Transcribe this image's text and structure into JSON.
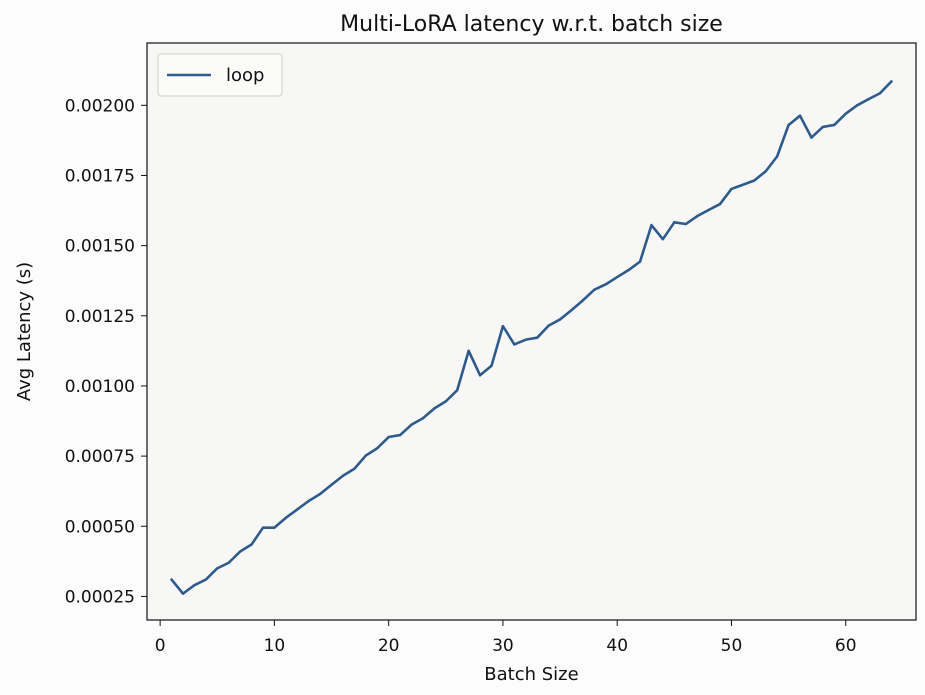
{
  "chart_data": {
    "type": "line",
    "title": "Multi-LoRA latency w.r.t. batch size",
    "xlabel": "Batch Size",
    "ylabel": "Avg Latency (s)",
    "xlim": [
      -1.15,
      66.15
    ],
    "ylim": [
      0.000166,
      0.002222
    ],
    "xticks": [
      0,
      10,
      20,
      30,
      40,
      50,
      60
    ],
    "xtick_labels": [
      "0",
      "10",
      "20",
      "30",
      "40",
      "50",
      "60"
    ],
    "yticks": [
      0.00025,
      0.0005,
      0.00075,
      0.001,
      0.00125,
      0.0015,
      0.00175,
      0.002
    ],
    "ytick_labels": [
      "0.00025",
      "0.00050",
      "0.00075",
      "0.00100",
      "0.00125",
      "0.00150",
      "0.00175",
      "0.00200"
    ],
    "grid": false,
    "legend_position": "upper-left",
    "series": [
      {
        "name": "loop",
        "color": "#2f5b8c",
        "x": [
          1,
          2,
          3,
          4,
          5,
          6,
          7,
          8,
          9,
          10,
          11,
          12,
          13,
          14,
          15,
          16,
          17,
          18,
          19,
          20,
          21,
          22,
          23,
          24,
          25,
          26,
          27,
          28,
          29,
          30,
          31,
          32,
          33,
          34,
          35,
          36,
          37,
          38,
          39,
          40,
          41,
          42,
          43,
          44,
          45,
          46,
          47,
          48,
          49,
          50,
          51,
          52,
          53,
          54,
          55,
          56,
          57,
          58,
          59,
          60,
          61,
          62,
          63,
          64
        ],
        "y": [
          0.00031,
          0.00026,
          0.00029,
          0.00031,
          0.00035,
          0.00037,
          0.00041,
          0.000435,
          0.000495,
          0.000495,
          0.00053,
          0.00056,
          0.00059,
          0.000615,
          0.000648,
          0.00068,
          0.000705,
          0.000752,
          0.000778,
          0.000818,
          0.000825,
          0.000862,
          0.000885,
          0.00092,
          0.000945,
          0.000985,
          0.001125,
          0.001038,
          0.001072,
          0.001213,
          0.001148,
          0.001165,
          0.001172,
          0.001215,
          0.001237,
          0.00127,
          0.001305,
          0.001343,
          0.001362,
          0.001388,
          0.001413,
          0.001443,
          0.001573,
          0.001523,
          0.001583,
          0.001577,
          0.001605,
          0.001627,
          0.001648,
          0.001702,
          0.001717,
          0.001732,
          0.001765,
          0.001818,
          0.00193,
          0.001963,
          0.001885,
          0.001923,
          0.00193,
          0.00197,
          0.002,
          0.002022,
          0.002043,
          0.002085
        ]
      }
    ]
  }
}
